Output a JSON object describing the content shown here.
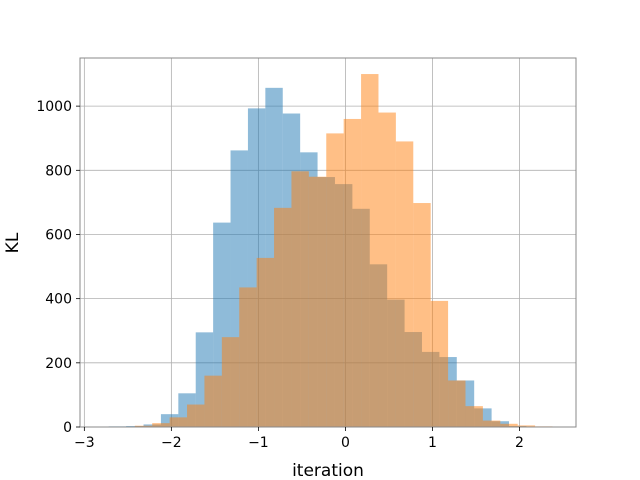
{
  "chart_data": {
    "type": "bar",
    "subtype": "overlapping-histogram",
    "title": "",
    "xlabel": "iteration",
    "ylabel": "KL",
    "xlim": [
      -3.05,
      2.65
    ],
    "ylim": [
      0,
      1150
    ],
    "xticks": [
      -3,
      -2,
      -1,
      0,
      1,
      2
    ],
    "xtick_labels": [
      "−3",
      "−2",
      "−1",
      "0",
      "1",
      "2"
    ],
    "yticks": [
      0,
      200,
      400,
      600,
      800,
      1000
    ],
    "ytick_labels": [
      "0",
      "200",
      "400",
      "600",
      "800",
      "1000"
    ],
    "grid": true,
    "legend": "none",
    "series": [
      {
        "color": "#1f77b4",
        "opacity": 0.5,
        "bin_edges": [
          -2.72,
          -2.52,
          -2.32,
          -2.12,
          -1.92,
          -1.72,
          -1.52,
          -1.32,
          -1.12,
          -0.92,
          -0.72,
          -0.52,
          -0.32,
          -0.12,
          0.08,
          0.28,
          0.48,
          0.68,
          0.88,
          1.08,
          1.28,
          1.48,
          1.68,
          1.88,
          2.08
        ],
        "values": [
          2,
          3,
          8,
          40,
          105,
          295,
          637,
          862,
          993,
          1057,
          977,
          856,
          779,
          757,
          680,
          507,
          397,
          296,
          234,
          218,
          145,
          58,
          18,
          3
        ]
      },
      {
        "color": "#ff7f0e",
        "opacity": 0.5,
        "bin_edges": [
          -2.42,
          -2.22,
          -2.02,
          -1.82,
          -1.62,
          -1.42,
          -1.22,
          -1.02,
          -0.82,
          -0.62,
          -0.42,
          -0.22,
          -0.02,
          0.18,
          0.38,
          0.58,
          0.78,
          0.98,
          1.18,
          1.38,
          1.58,
          1.78,
          1.98,
          2.18,
          2.38
        ],
        "values": [
          4,
          12,
          30,
          70,
          160,
          280,
          435,
          527,
          683,
          797,
          780,
          915,
          960,
          1100,
          980,
          890,
          698,
          393,
          145,
          65,
          20,
          10,
          5,
          2
        ]
      }
    ]
  }
}
